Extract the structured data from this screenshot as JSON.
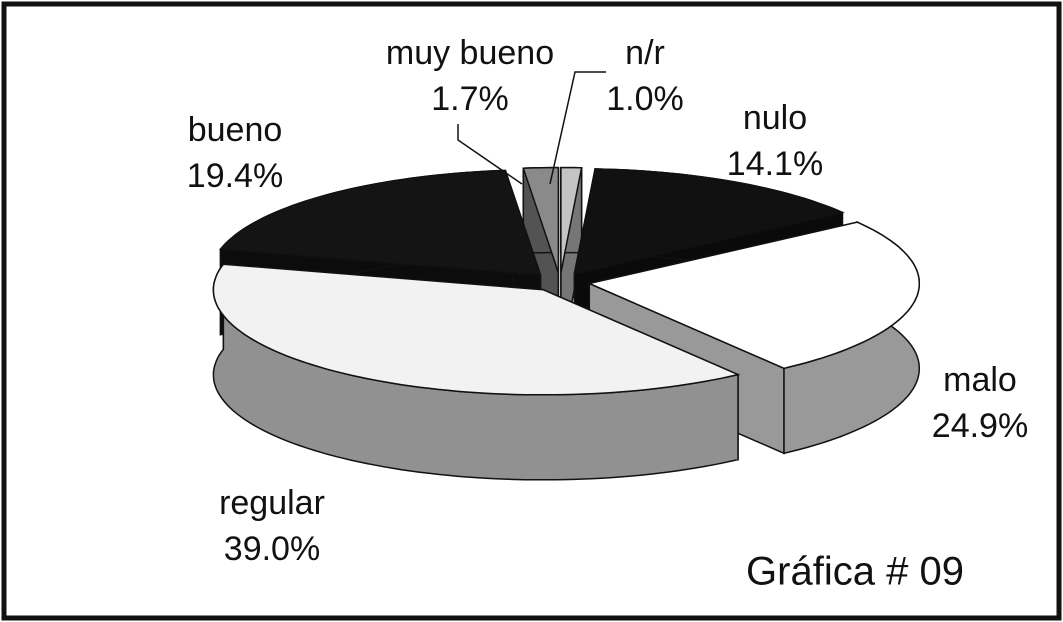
{
  "chart_data": {
    "type": "pie",
    "annotation": "Gráfica # 09",
    "categories": [
      "n/r",
      "nulo",
      "malo",
      "regular",
      "bueno",
      "muy bueno"
    ],
    "values": [
      1.0,
      14.1,
      24.9,
      39.0,
      19.4,
      1.7
    ],
    "value_labels": [
      "1.0%",
      "14.1%",
      "24.9%",
      "39.0%",
      "19.4%",
      "1.7%"
    ],
    "colors": [
      "#c4c4c4",
      "#111111",
      "#ffffff",
      "#f2f2f2",
      "#141414",
      "#8a8a8a"
    ]
  }
}
